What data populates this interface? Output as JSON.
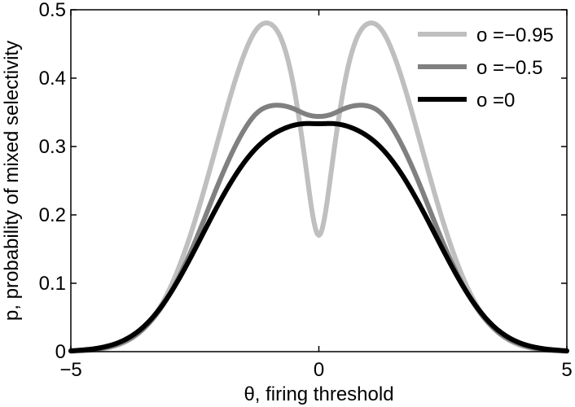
{
  "chart_data": {
    "type": "line",
    "title": "",
    "xlabel": "θ, firing threshold",
    "ylabel": "p, probability of mixed selectivity",
    "xlim": [
      -5,
      5
    ],
    "ylim": [
      0,
      0.5
    ],
    "xticks": [
      -5,
      0,
      5
    ],
    "xtick_labels": [
      "−5",
      "0",
      "5"
    ],
    "yticks": [
      0,
      0.1,
      0.2,
      0.3,
      0.4,
      0.5
    ],
    "ytick_labels": [
      "0",
      "0.1",
      "0.2",
      "0.3",
      "0.4",
      "0.5"
    ],
    "grid": false,
    "legend_position": "top-right",
    "series": [
      {
        "name": "o =−0.95",
        "color": "#bfbfbf",
        "x": [
          -5,
          -4.5,
          -4,
          -3.5,
          -3,
          -2.5,
          -2,
          -1.5,
          -1.25,
          -1,
          -0.75,
          -0.5,
          -0.25,
          0,
          0.25,
          0.5,
          0.75,
          1,
          1.25,
          1.5,
          2,
          2.5,
          3,
          3.5,
          4,
          4.5,
          5
        ],
        "y": [
          0.0006,
          0.0027,
          0.011,
          0.036,
          0.093,
          0.191,
          0.318,
          0.436,
          0.472,
          0.48,
          0.456,
          0.385,
          0.264,
          0.17,
          0.264,
          0.385,
          0.456,
          0.48,
          0.472,
          0.436,
          0.318,
          0.191,
          0.093,
          0.036,
          0.011,
          0.0027,
          0.0006
        ]
      },
      {
        "name": "o =−0.5",
        "color": "#808080",
        "x": [
          -5,
          -4.5,
          -4,
          -3.5,
          -3,
          -2.5,
          -2,
          -1.5,
          -1.25,
          -1,
          -0.75,
          -0.5,
          -0.25,
          0,
          0.25,
          0.5,
          0.75,
          1,
          1.25,
          1.5,
          2,
          2.5,
          3,
          3.5,
          4,
          4.5,
          5
        ],
        "y": [
          0.0008,
          0.0035,
          0.0125,
          0.036,
          0.085,
          0.16,
          0.25,
          0.325,
          0.349,
          0.359,
          0.36,
          0.355,
          0.347,
          0.344,
          0.347,
          0.355,
          0.36,
          0.359,
          0.349,
          0.325,
          0.25,
          0.16,
          0.085,
          0.036,
          0.0125,
          0.0035,
          0.0008
        ]
      },
      {
        "name": "o =0",
        "color": "#000000",
        "x": [
          -5,
          -4.5,
          -4,
          -3.5,
          -3,
          -2.5,
          -2,
          -1.5,
          -1.25,
          -1,
          -0.75,
          -0.5,
          -0.25,
          0,
          0.25,
          0.5,
          0.75,
          1,
          1.25,
          1.5,
          2,
          2.5,
          3,
          3.5,
          4,
          4.5,
          5
        ],
        "y": [
          0.0012,
          0.0046,
          0.0144,
          0.0387,
          0.0847,
          0.1494,
          0.2189,
          0.2772,
          0.2986,
          0.3142,
          0.3247,
          0.3312,
          0.3336,
          0.3333,
          0.3336,
          0.3312,
          0.3247,
          0.3142,
          0.2986,
          0.2772,
          0.2189,
          0.1494,
          0.0847,
          0.0387,
          0.0144,
          0.0046,
          0.0012
        ]
      }
    ]
  }
}
